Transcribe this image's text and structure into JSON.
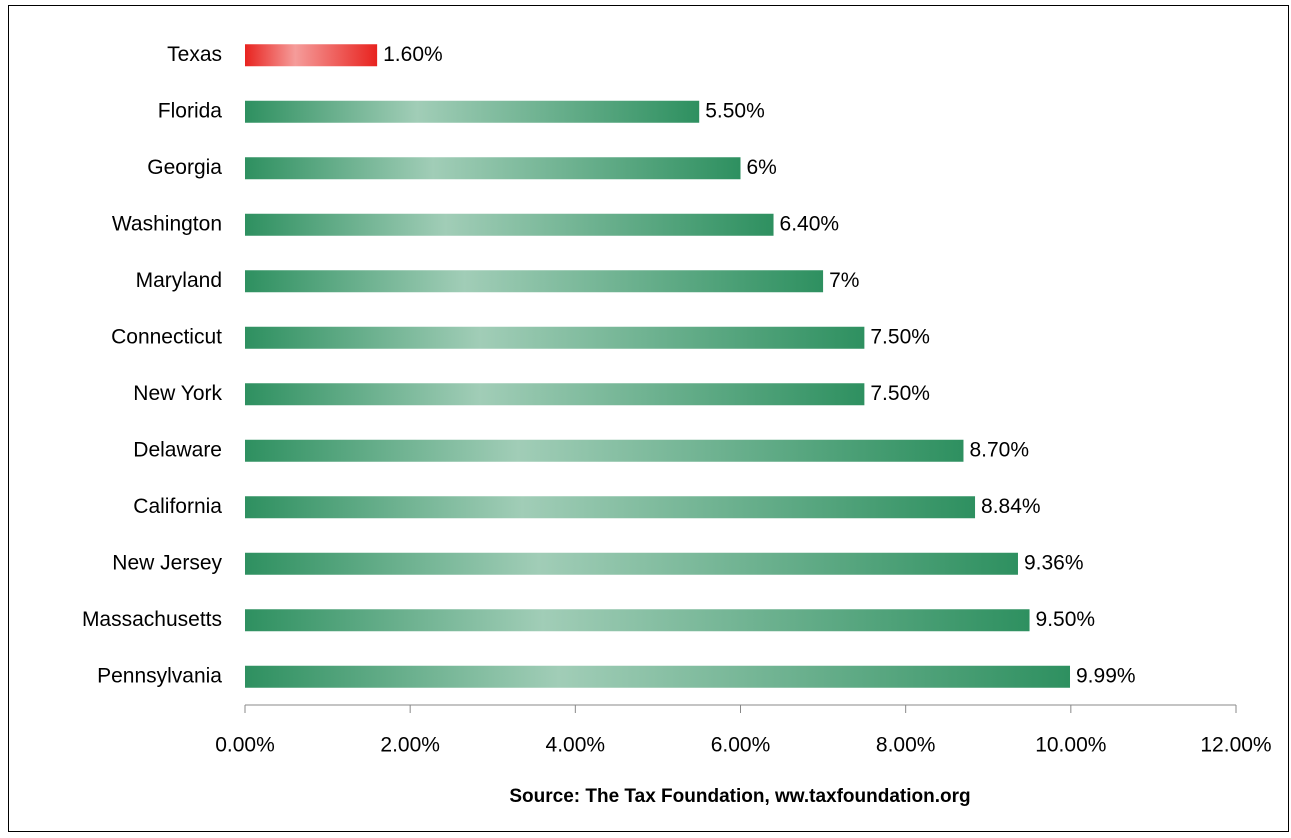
{
  "chart_data": {
    "type": "bar",
    "orientation": "horizontal",
    "x_label": "Source: The Tax Foundation, ww.taxfoundation.org",
    "categories": [
      "Texas",
      "Florida",
      "Georgia",
      "Washington",
      "Maryland",
      "Connecticut",
      "New York",
      "Delaware",
      "California",
      "New Jersey",
      "Massachusetts",
      "Pennsylvania"
    ],
    "values": [
      1.6,
      5.5,
      6,
      6.4,
      7,
      7.5,
      7.5,
      8.7,
      8.84,
      9.36,
      9.5,
      9.99
    ],
    "value_labels": [
      "1.60%",
      "5.50%",
      "6%",
      "6.40%",
      "7%",
      "7.50%",
      "7.50%",
      "8.70%",
      "8.84%",
      "9.36%",
      "9.50%",
      "9.99%"
    ],
    "colors": [
      "#e8231f",
      "#2e9060",
      "#2e9060",
      "#2e9060",
      "#2e9060",
      "#2e9060",
      "#2e9060",
      "#2e9060",
      "#2e9060",
      "#2e9060",
      "#2e9060",
      "#2e9060"
    ],
    "xlim": [
      0,
      12
    ],
    "xticks": [
      {
        "value": 0,
        "label": "0.00%"
      },
      {
        "value": 2,
        "label": "2.00%"
      },
      {
        "value": 4,
        "label": "4.00%"
      },
      {
        "value": 6,
        "label": "6.00%"
      },
      {
        "value": 8,
        "label": "8.00%"
      },
      {
        "value": 10,
        "label": "10.00%"
      },
      {
        "value": 12,
        "label": "12.00%"
      }
    ],
    "grid": false
  }
}
